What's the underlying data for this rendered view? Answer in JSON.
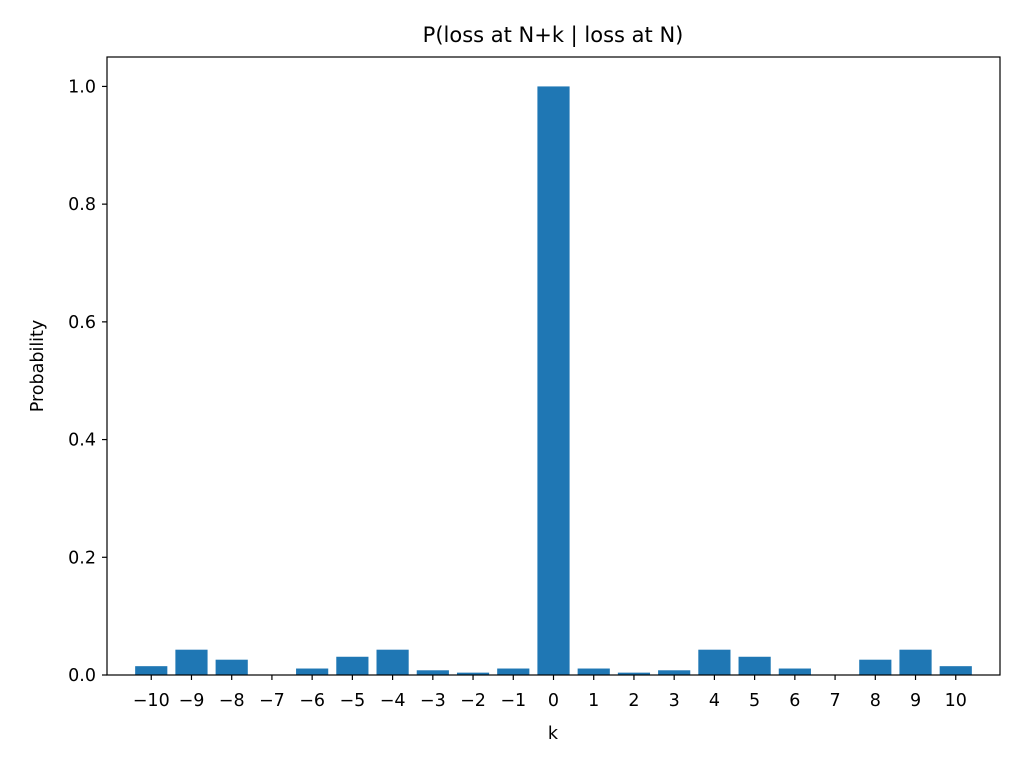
{
  "chart_data": {
    "type": "bar",
    "title": "P(loss at N+k | loss at N)",
    "xlabel": "k",
    "ylabel": "Probability",
    "categories": [
      "−10",
      "−9",
      "−8",
      "−7",
      "−6",
      "−5",
      "−4",
      "−3",
      "−2",
      "−1",
      "0",
      "1",
      "2",
      "3",
      "4",
      "5",
      "6",
      "7",
      "8",
      "9",
      "10"
    ],
    "x": [
      -10,
      -9,
      -8,
      -7,
      -6,
      -5,
      -4,
      -3,
      -2,
      -1,
      0,
      1,
      2,
      3,
      4,
      5,
      6,
      7,
      8,
      9,
      10
    ],
    "values": [
      0.015,
      0.043,
      0.026,
      0.0,
      0.011,
      0.031,
      0.043,
      0.008,
      0.004,
      0.011,
      1.0,
      0.011,
      0.004,
      0.008,
      0.043,
      0.031,
      0.011,
      0.0,
      0.026,
      0.043,
      0.015
    ],
    "ylim": [
      0,
      1.05
    ],
    "xlim": [
      -11.1,
      11.1
    ],
    "yticks": [
      0.0,
      0.2,
      0.4,
      0.6,
      0.8,
      1.0
    ],
    "ytick_labels": [
      "0.0",
      "0.2",
      "0.4",
      "0.6",
      "0.8",
      "1.0"
    ],
    "bar_width": 0.8,
    "grid": false,
    "colors": {
      "bar": "#1f77b4",
      "axes": "#000000",
      "background": "#ffffff"
    }
  }
}
